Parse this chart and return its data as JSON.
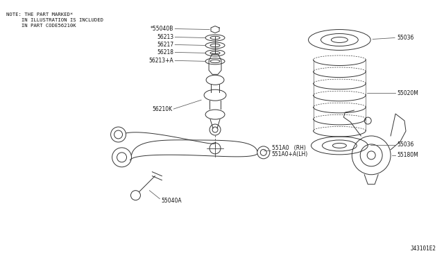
{
  "background_color": "#ffffff",
  "border_color": "#aaaaaa",
  "fig_width": 6.4,
  "fig_height": 3.72,
  "note_line1": "NOTE: THE PART MARKED*",
  "note_line2": "     IN ILLUSTRATION IS INCLUDED",
  "note_line3": "     IN PART CODE56210K",
  "diagram_id": "J43101E2",
  "lc": "#333333",
  "lc2": "#555555",
  "lw": 0.7
}
